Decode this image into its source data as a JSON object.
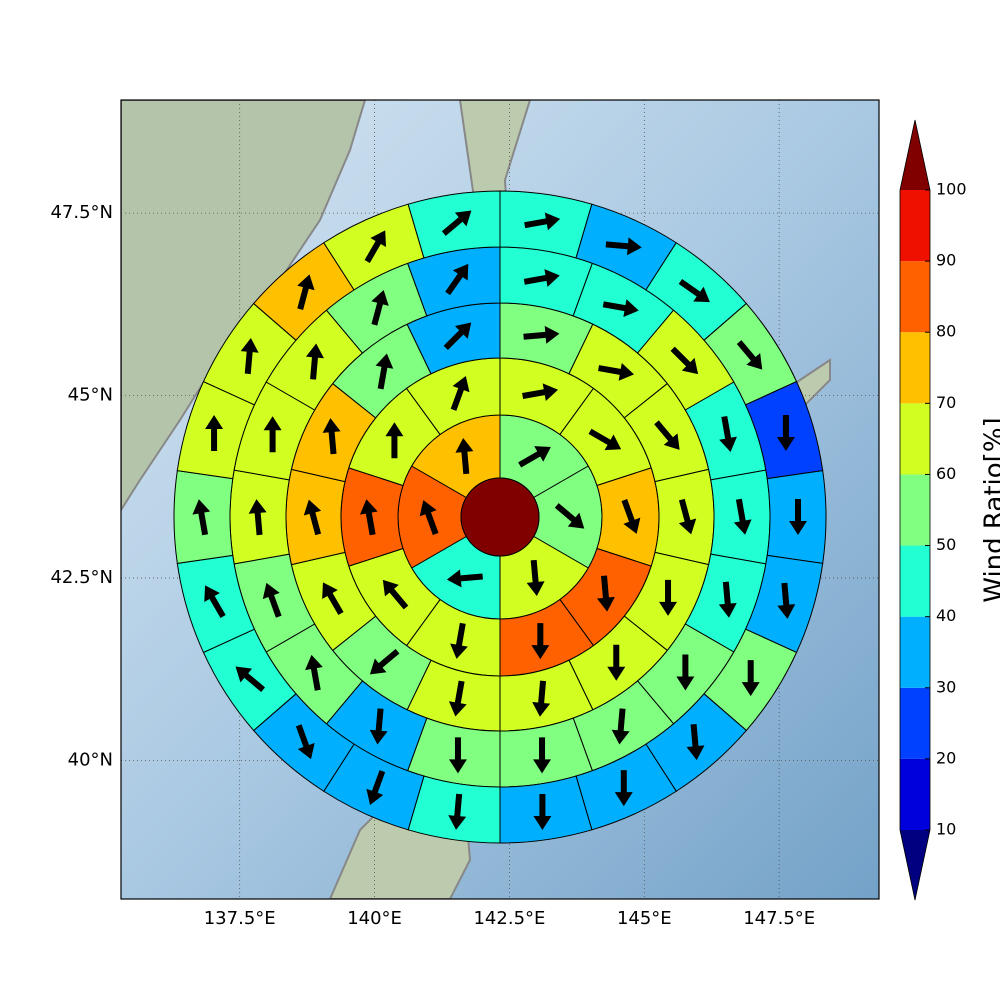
{
  "chart_data": {
    "type": "wind_rose_map",
    "xlim": [
      135.3,
      149.35
    ],
    "ylim": [
      38.1,
      49.05
    ],
    "xticks": [
      {
        "value": 137.5,
        "label": "137.5°E"
      },
      {
        "value": 140,
        "label": "140°E"
      },
      {
        "value": 142.5,
        "label": "142.5°E"
      },
      {
        "value": 145,
        "label": "145°E"
      },
      {
        "value": 147.5,
        "label": "147.5°E"
      }
    ],
    "yticks": [
      {
        "value": 40,
        "label": "40°N"
      },
      {
        "value": 42.5,
        "label": "42.5°N"
      },
      {
        "value": 45,
        "label": "45°N"
      },
      {
        "value": 47.5,
        "label": "47.5°N"
      }
    ],
    "grid": true,
    "colorbar": {
      "label": "Wind Ratio[%]",
      "levels": [
        10,
        20,
        30,
        40,
        50,
        60,
        70,
        80,
        90,
        100
      ],
      "colors": [
        "#0000dc",
        "#0040ff",
        "#00b0ff",
        "#22ffd2",
        "#80ff80",
        "#d2ff22",
        "#ffc000",
        "#ff6000",
        "#f01000"
      ],
      "under_color": "#000080",
      "over_color": "#800000"
    },
    "rings": [
      {
        "values": [
          55,
          55,
          65,
          45,
          85,
          75
        ],
        "directions": [
          60,
          130,
          175,
          265,
          340,
          355
        ]
      },
      {
        "values": [
          65,
          65,
          75,
          85,
          85,
          65,
          65,
          85,
          65,
          65
        ],
        "directions": [
          80,
          120,
          160,
          175,
          180,
          190,
          320,
          350,
          0,
          20
        ]
      },
      {
        "values": [
          55,
          65,
          65,
          65,
          65,
          65,
          65,
          65,
          55,
          65,
          75,
          75,
          55,
          35
        ],
        "directions": [
          85,
          100,
          140,
          165,
          180,
          180,
          185,
          190,
          230,
          330,
          345,
          355,
          10,
          45
        ]
      },
      {
        "values": [
          45,
          45,
          65,
          45,
          45,
          45,
          55,
          55,
          55,
          55,
          35,
          55,
          55,
          65,
          65,
          65,
          55,
          35
        ],
        "directions": [
          80,
          100,
          135,
          170,
          170,
          175,
          180,
          185,
          180,
          180,
          185,
          350,
          340,
          355,
          0,
          5,
          15,
          35
        ]
      },
      {
        "values": [
          45,
          35,
          45,
          55,
          25,
          35,
          35,
          55,
          35,
          35,
          35,
          45,
          35,
          35,
          45,
          45,
          55,
          65,
          65,
          75,
          65,
          45
        ],
        "directions": [
          80,
          95,
          125,
          140,
          180,
          180,
          175,
          180,
          175,
          180,
          180,
          185,
          200,
          160,
          310,
          330,
          350,
          0,
          5,
          15,
          30,
          50
        ]
      }
    ]
  }
}
